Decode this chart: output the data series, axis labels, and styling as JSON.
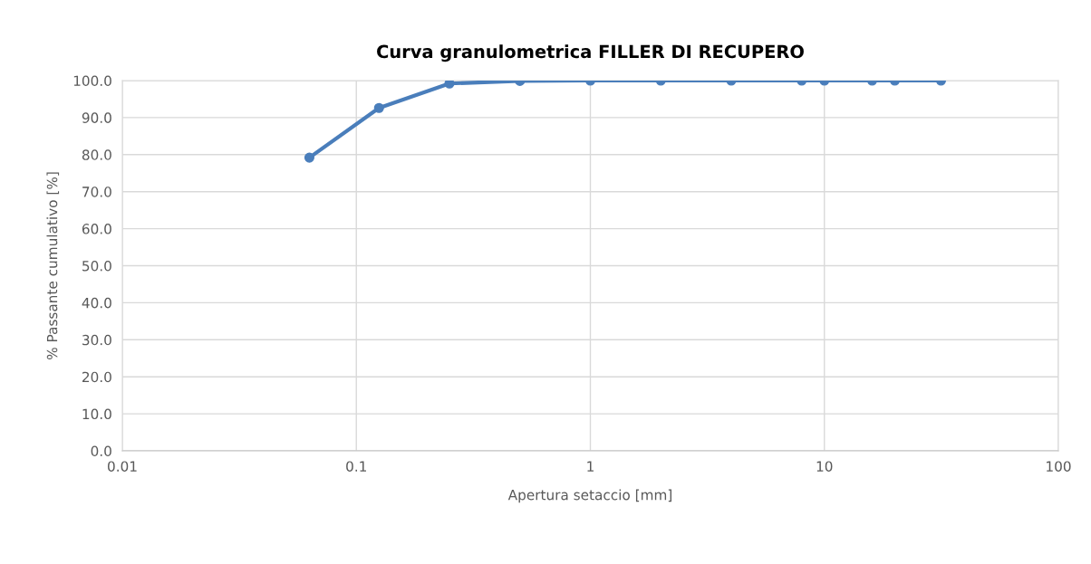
{
  "chart_data": {
    "type": "line",
    "title": "Curva granulometrica FILLER DI RECUPERO",
    "xlabel": "Apertura setaccio [mm]",
    "ylabel": "% Passante cumulativo [%]",
    "x": [
      0.063,
      0.125,
      0.25,
      0.5,
      1,
      2,
      4,
      8,
      10,
      16,
      20,
      31.5
    ],
    "series": [
      {
        "color": "#4a7ebb",
        "values": [
          79.2,
          92.6,
          99.2,
          99.9,
          100,
          100,
          100,
          100,
          100,
          100,
          100,
          100
        ]
      }
    ],
    "log": "x",
    "xlim": [
      0.01,
      100
    ],
    "xticks": [
      0.01,
      0.1,
      1,
      10,
      100
    ],
    "ylim": [
      0,
      100
    ],
    "yticks": [
      {
        "value": 0,
        "label": "0.0"
      },
      {
        "value": 10,
        "label": "10.0"
      },
      {
        "value": 20,
        "label": "20.0"
      },
      {
        "value": 30,
        "label": "30.0"
      },
      {
        "value": 40,
        "label": "40.0"
      },
      {
        "value": 50,
        "label": "50.0"
      },
      {
        "value": 60,
        "label": "60.0"
      },
      {
        "value": 70,
        "label": "70.0"
      },
      {
        "value": 80,
        "label": "80.0"
      },
      {
        "value": 90,
        "label": "90.0"
      },
      {
        "value": 100,
        "label": "100.0"
      }
    ],
    "grid": true,
    "marker": "circle",
    "line_style": "solid"
  }
}
